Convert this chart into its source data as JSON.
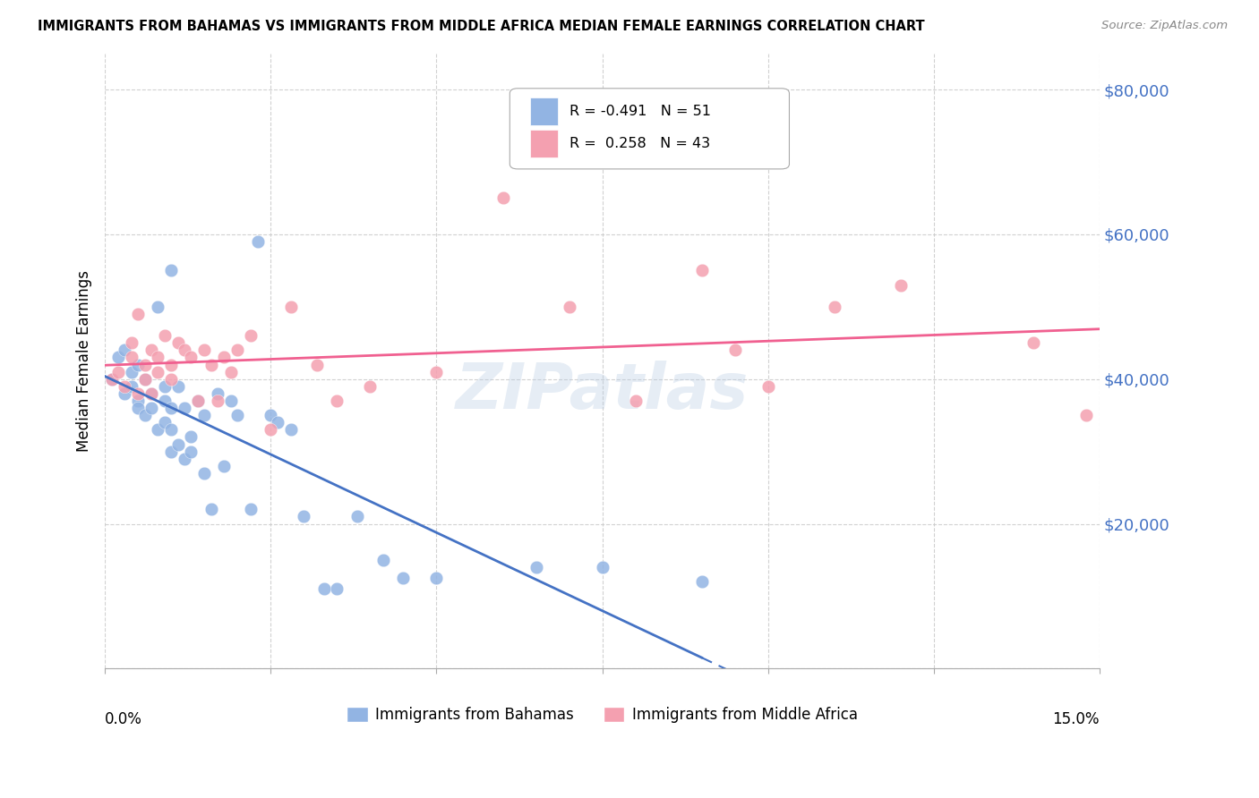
{
  "title": "IMMIGRANTS FROM BAHAMAS VS IMMIGRANTS FROM MIDDLE AFRICA MEDIAN FEMALE EARNINGS CORRELATION CHART",
  "source": "Source: ZipAtlas.com",
  "ylabel": "Median Female Earnings",
  "yticks": [
    0,
    20000,
    40000,
    60000,
    80000
  ],
  "ytick_labels": [
    "",
    "$20,000",
    "$40,000",
    "$60,000",
    "$80,000"
  ],
  "xmin": 0.0,
  "xmax": 0.15,
  "ymin": 0,
  "ymax": 85000,
  "color_bahamas": "#92b4e3",
  "color_middle_africa": "#f4a0b0",
  "color_trend_bahamas": "#4472c4",
  "color_trend_middle_africa": "#f06090",
  "color_axis_labels": "#4472c4",
  "watermark": "ZIPatlas",
  "bahamas_x": [
    0.001,
    0.002,
    0.003,
    0.003,
    0.004,
    0.004,
    0.005,
    0.005,
    0.005,
    0.006,
    0.006,
    0.007,
    0.007,
    0.008,
    0.008,
    0.009,
    0.009,
    0.009,
    0.01,
    0.01,
    0.01,
    0.01,
    0.011,
    0.011,
    0.012,
    0.012,
    0.013,
    0.013,
    0.014,
    0.015,
    0.015,
    0.016,
    0.017,
    0.018,
    0.019,
    0.02,
    0.022,
    0.023,
    0.025,
    0.026,
    0.028,
    0.03,
    0.033,
    0.035,
    0.038,
    0.042,
    0.045,
    0.05,
    0.065,
    0.075,
    0.09
  ],
  "bahamas_y": [
    40000,
    43000,
    38000,
    44000,
    41000,
    39000,
    42000,
    37000,
    36000,
    40000,
    35000,
    38000,
    36000,
    33000,
    50000,
    39000,
    37000,
    34000,
    36000,
    33000,
    30000,
    55000,
    39000,
    31000,
    29000,
    36000,
    32000,
    30000,
    37000,
    35000,
    27000,
    22000,
    38000,
    28000,
    37000,
    35000,
    22000,
    59000,
    35000,
    34000,
    33000,
    21000,
    11000,
    11000,
    21000,
    15000,
    12500,
    12500,
    14000,
    14000,
    12000
  ],
  "middle_africa_x": [
    0.001,
    0.002,
    0.003,
    0.004,
    0.004,
    0.005,
    0.005,
    0.006,
    0.006,
    0.007,
    0.007,
    0.008,
    0.008,
    0.009,
    0.01,
    0.01,
    0.011,
    0.012,
    0.013,
    0.014,
    0.015,
    0.016,
    0.017,
    0.018,
    0.019,
    0.02,
    0.022,
    0.025,
    0.028,
    0.032,
    0.035,
    0.04,
    0.05,
    0.06,
    0.07,
    0.08,
    0.09,
    0.095,
    0.1,
    0.11,
    0.12,
    0.14,
    0.148
  ],
  "middle_africa_y": [
    40000,
    41000,
    39000,
    43000,
    45000,
    38000,
    49000,
    42000,
    40000,
    44000,
    38000,
    41000,
    43000,
    46000,
    42000,
    40000,
    45000,
    44000,
    43000,
    37000,
    44000,
    42000,
    37000,
    43000,
    41000,
    44000,
    46000,
    33000,
    50000,
    42000,
    37000,
    39000,
    41000,
    65000,
    50000,
    37000,
    55000,
    44000,
    39000,
    50000,
    53000,
    45000,
    35000
  ]
}
